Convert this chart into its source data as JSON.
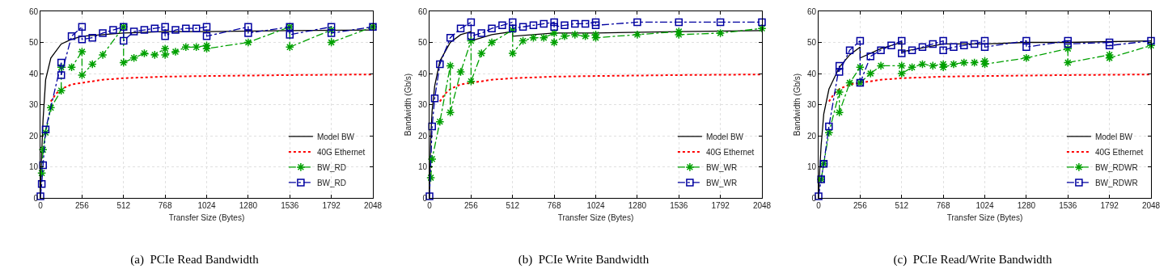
{
  "chart_data": [
    {
      "type": "line",
      "title": "(a)  PCIe Read Bandwidth",
      "xlabel": "Transfer Size (Bytes)",
      "xlim": [
        0,
        2048
      ],
      "xticks": [
        0,
        256,
        512,
        768,
        1024,
        1280,
        1536,
        1792,
        2048
      ],
      "ylim": [
        0,
        60
      ],
      "yticks": [
        0,
        10,
        20,
        30,
        40,
        50,
        60
      ],
      "grid": true,
      "legend": "bottom right",
      "series": [
        {
          "name": "Model BW",
          "color": "#000000",
          "marker": "none",
          "line_style": "solid",
          "x": [
            0,
            8,
            16,
            32,
            64,
            128,
            192,
            256,
            512,
            768,
            1024,
            1536,
            2048
          ],
          "values": [
            0,
            15,
            25,
            38,
            45,
            49.5,
            51,
            52,
            53,
            53.5,
            53.5,
            53.8,
            54
          ]
        },
        {
          "name": "40G Ethernet",
          "color": "#ff0000",
          "marker": "none",
          "line_style": "dotted",
          "x": [
            64,
            96,
            128,
            192,
            256,
            384,
            512,
            768,
            1024,
            1536,
            2048
          ],
          "values": [
            31,
            33.5,
            35,
            36.5,
            37,
            38,
            38.5,
            39,
            39.2,
            39.5,
            39.7
          ]
        },
        {
          "name": "BW_RD",
          "color": "#00a000",
          "marker": "cross",
          "line_style": "dashed",
          "x": [
            8,
            16,
            32,
            64,
            128,
            128,
            192,
            256,
            256,
            320,
            384,
            512,
            512,
            576,
            640,
            704,
            768,
            768,
            832,
            896,
            960,
            1024,
            1024,
            1280,
            1536,
            1536,
            1792,
            1792,
            2048
          ],
          "values": [
            8,
            15.5,
            21,
            29,
            34.5,
            42,
            42,
            47,
            39.5,
            43,
            46,
            55,
            43.5,
            45,
            46.5,
            46,
            48,
            46,
            47,
            48.5,
            48.5,
            49,
            48,
            50,
            55,
            48.5,
            54,
            50,
            55
          ]
        },
        {
          "name": "BW_RD",
          "color": "#0000a0",
          "marker": "square",
          "line_style": "dashed",
          "x": [
            0,
            8,
            16,
            32,
            128,
            128,
            192,
            256,
            256,
            320,
            384,
            448,
            512,
            512,
            576,
            640,
            704,
            768,
            768,
            832,
            896,
            960,
            1024,
            1024,
            1280,
            1280,
            1536,
            1536,
            1792,
            1792,
            2048
          ],
          "values": [
            0.5,
            4.5,
            10.5,
            22,
            43.5,
            39.5,
            52,
            55,
            51,
            51.5,
            53,
            54,
            55,
            50.5,
            53.5,
            54,
            54.5,
            55,
            52,
            54,
            54.5,
            54.5,
            55,
            52,
            55,
            53,
            55,
            52.5,
            55,
            53,
            55
          ]
        }
      ]
    },
    {
      "type": "line",
      "title": "(b)  PCIe Write Bandwidth",
      "xlabel": "Transfer Size (Bytes)",
      "ylabel": "Bandwidth (Gb/s)",
      "xlim": [
        0,
        2048
      ],
      "xticks": [
        0,
        256,
        512,
        768,
        1024,
        1280,
        1536,
        1792,
        2048
      ],
      "ylim": [
        0,
        60
      ],
      "yticks": [
        0,
        10,
        20,
        30,
        40,
        50,
        60
      ],
      "grid": true,
      "legend": "bottom right",
      "series": [
        {
          "name": "Model BW",
          "color": "#000000",
          "marker": "none",
          "line_style": "solid",
          "x": [
            0,
            8,
            16,
            32,
            64,
            128,
            192,
            256,
            256,
            384,
            512,
            512,
            768,
            1024,
            1536,
            2048
          ],
          "values": [
            0,
            20,
            28,
            36,
            44,
            50,
            52.5,
            53.5,
            50.5,
            52.5,
            53.5,
            52,
            53,
            53,
            53.5,
            53.8
          ]
        },
        {
          "name": "40G Ethernet",
          "color": "#ff0000",
          "marker": "none",
          "line_style": "dotted",
          "x": [
            64,
            96,
            128,
            192,
            256,
            384,
            512,
            768,
            1024,
            1536,
            2048
          ],
          "values": [
            31,
            33.5,
            35,
            36.5,
            37,
            38,
            38.5,
            39,
            39.2,
            39.5,
            39.7
          ]
        },
        {
          "name": "BW_WR",
          "color": "#00a000",
          "marker": "cross",
          "line_style": "dashed",
          "x": [
            8,
            16,
            64,
            128,
            128,
            192,
            256,
            256,
            320,
            384,
            512,
            512,
            576,
            640,
            704,
            768,
            768,
            832,
            896,
            960,
            1024,
            1024,
            1280,
            1536,
            1536,
            1792,
            2048
          ],
          "values": [
            6.5,
            12.5,
            24.5,
            42.5,
            27.5,
            40.5,
            50.5,
            37.5,
            46.5,
            50,
            54,
            46.5,
            50.5,
            51.5,
            51.5,
            53,
            50,
            52,
            52.5,
            52,
            52.5,
            51.5,
            52.5,
            53.5,
            52.5,
            53,
            54.5
          ]
        },
        {
          "name": "BW_WR",
          "color": "#0000a0",
          "marker": "square",
          "line_style": "dashed",
          "x": [
            0,
            16,
            32,
            64,
            128,
            192,
            256,
            256,
            320,
            384,
            448,
            512,
            512,
            576,
            640,
            704,
            768,
            768,
            832,
            896,
            960,
            1024,
            1024,
            1280,
            1536,
            1792,
            2048
          ],
          "values": [
            0.5,
            23,
            32,
            43,
            51.5,
            54.5,
            56.5,
            52,
            53,
            54.5,
            55.5,
            56.5,
            54.5,
            55,
            55.5,
            56,
            56.5,
            55,
            55.5,
            56,
            56,
            56.5,
            55.5,
            56.5,
            56.5,
            56.5,
            56.5
          ]
        }
      ]
    },
    {
      "type": "line",
      "title": "(c)  PCIe Read/Write Bandwidth",
      "xlabel": "Transfer Size (Bytes)",
      "ylabel": "Bandwidth (Gb/s)",
      "xlim": [
        0,
        2048
      ],
      "xticks": [
        0,
        256,
        512,
        768,
        1024,
        1280,
        1536,
        1792,
        2048
      ],
      "ylim": [
        0,
        60
      ],
      "yticks": [
        0,
        10,
        20,
        30,
        40,
        50,
        60
      ],
      "grid": true,
      "legend": "bottom right",
      "series": [
        {
          "name": "Model BW",
          "color": "#000000",
          "marker": "none",
          "line_style": "solid",
          "x": [
            0,
            8,
            16,
            32,
            64,
            128,
            192,
            256,
            256,
            384,
            512,
            512,
            768,
            1024,
            1280,
            1536,
            2048
          ],
          "values": [
            0,
            10,
            17,
            27,
            35,
            42,
            46,
            48.5,
            45,
            48,
            50,
            47,
            49.5,
            49.5,
            50,
            50,
            50.5
          ]
        },
        {
          "name": "40G Ethernet",
          "color": "#ff0000",
          "marker": "none",
          "line_style": "dotted",
          "x": [
            64,
            96,
            128,
            192,
            256,
            384,
            512,
            768,
            1024,
            1536,
            2048
          ],
          "values": [
            31,
            33.5,
            35,
            36.5,
            37,
            38,
            38.5,
            39,
            39.2,
            39.5,
            39.7
          ]
        },
        {
          "name": "BW_RDWR",
          "color": "#00a000",
          "marker": "cross",
          "line_style": "dashed",
          "x": [
            16,
            32,
            64,
            128,
            128,
            192,
            256,
            256,
            320,
            384,
            512,
            512,
            576,
            640,
            704,
            768,
            768,
            832,
            896,
            960,
            1024,
            1024,
            1280,
            1536,
            1536,
            1792,
            1792,
            2048
          ],
          "values": [
            6,
            11,
            21,
            34,
            27.5,
            37,
            42,
            37,
            40,
            42.5,
            42.5,
            40,
            42,
            43,
            42.5,
            43,
            42,
            43,
            43.5,
            43.5,
            44,
            43,
            45,
            48,
            43.5,
            46,
            45,
            49
          ]
        },
        {
          "name": "BW_RDWR",
          "color": "#0000a0",
          "marker": "square",
          "line_style": "dashed",
          "x": [
            0,
            16,
            32,
            64,
            128,
            128,
            192,
            256,
            256,
            320,
            384,
            448,
            512,
            512,
            576,
            640,
            704,
            768,
            768,
            832,
            896,
            960,
            1024,
            1024,
            1280,
            1280,
            1536,
            1536,
            1792,
            1792,
            2048
          ],
          "values": [
            0.5,
            6,
            11,
            23,
            42.5,
            40.5,
            47.5,
            50.5,
            37,
            45.5,
            47.5,
            49,
            50.5,
            46.5,
            47.5,
            48.5,
            49.5,
            50.5,
            47.5,
            48.5,
            49,
            49.5,
            50.5,
            48.5,
            50.5,
            48.5,
            50.5,
            49.5,
            50,
            49,
            50.5
          ]
        }
      ]
    }
  ]
}
